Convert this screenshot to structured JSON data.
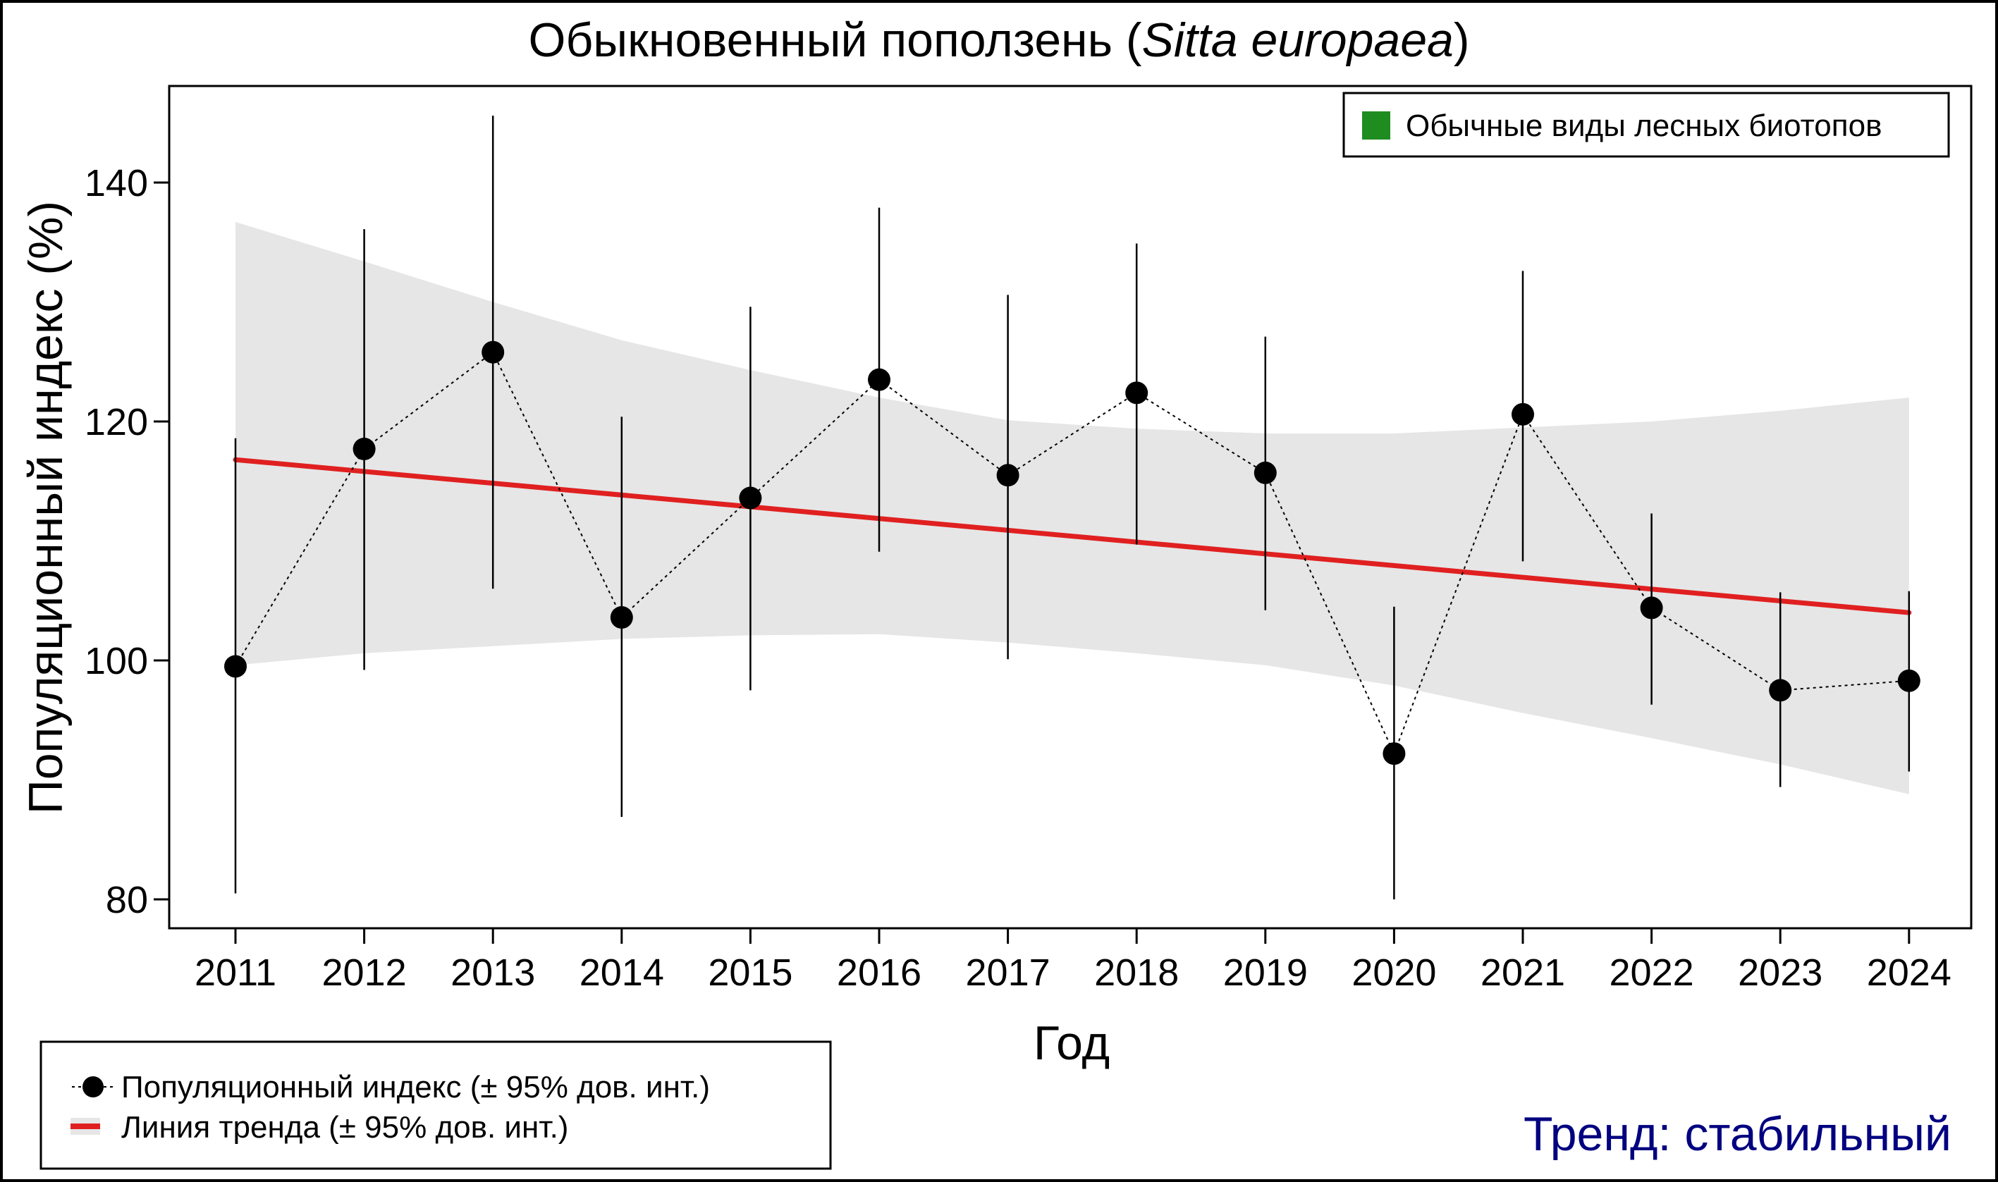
{
  "title": {
    "main": "Обыкновенный поползень (",
    "latin": "Sitta europaea",
    "close": ")"
  },
  "habitat_legend": {
    "label": "Обычные виды лесных биотопов",
    "color": "#1f8c1f"
  },
  "series_legend": {
    "index_label": "Популяционный индекс (± 95% дов. инт.)",
    "trend_label": "Линия тренда (± 95% дов. инт.)"
  },
  "trend_status": "Тренд: стабильный",
  "colors": {
    "trend_line": "#e02020",
    "band": "#e6e6e6",
    "points": "#000000",
    "trend_text": "#000080"
  },
  "chart_data": {
    "type": "line",
    "title": "Обыкновенный поползень (Sitta europaea)",
    "xlabel": "Год",
    "ylabel": "Популяционный индекс (%)",
    "ylim": [
      77,
      147
    ],
    "yticks": [
      80,
      100,
      120,
      140
    ],
    "x": [
      2011,
      2012,
      2013,
      2014,
      2015,
      2016,
      2017,
      2018,
      2019,
      2020,
      2021,
      2022,
      2023,
      2024
    ],
    "series": [
      {
        "name": "Популяционный индекс",
        "values": [
          99.5,
          117.7,
          125.8,
          103.6,
          113.6,
          123.5,
          115.5,
          122.4,
          115.7,
          92.2,
          120.6,
          104.4,
          97.5,
          98.3
        ],
        "ci_low": [
          80.5,
          99.2,
          106.0,
          86.9,
          97.5,
          109.1,
          100.1,
          109.7,
          104.2,
          80.0,
          108.3,
          96.3,
          89.4,
          90.7
        ],
        "ci_high": [
          118.6,
          136.1,
          145.6,
          120.4,
          129.6,
          137.9,
          130.6,
          134.9,
          127.1,
          104.5,
          132.6,
          112.3,
          105.7,
          105.8
        ]
      },
      {
        "name": "Линия тренда",
        "start": 116.8,
        "end": 104.0,
        "band_low": [
          99.6,
          100.6,
          101.2,
          101.8,
          102.1,
          102.2,
          101.5,
          100.6,
          99.6,
          97.9,
          95.6,
          93.5,
          91.3,
          88.8
        ],
        "band_high": [
          136.7,
          133.4,
          130.0,
          126.8,
          124.3,
          122.0,
          120.1,
          119.4,
          119.0,
          119.0,
          119.5,
          120.0,
          120.9,
          122.0
        ]
      }
    ]
  }
}
